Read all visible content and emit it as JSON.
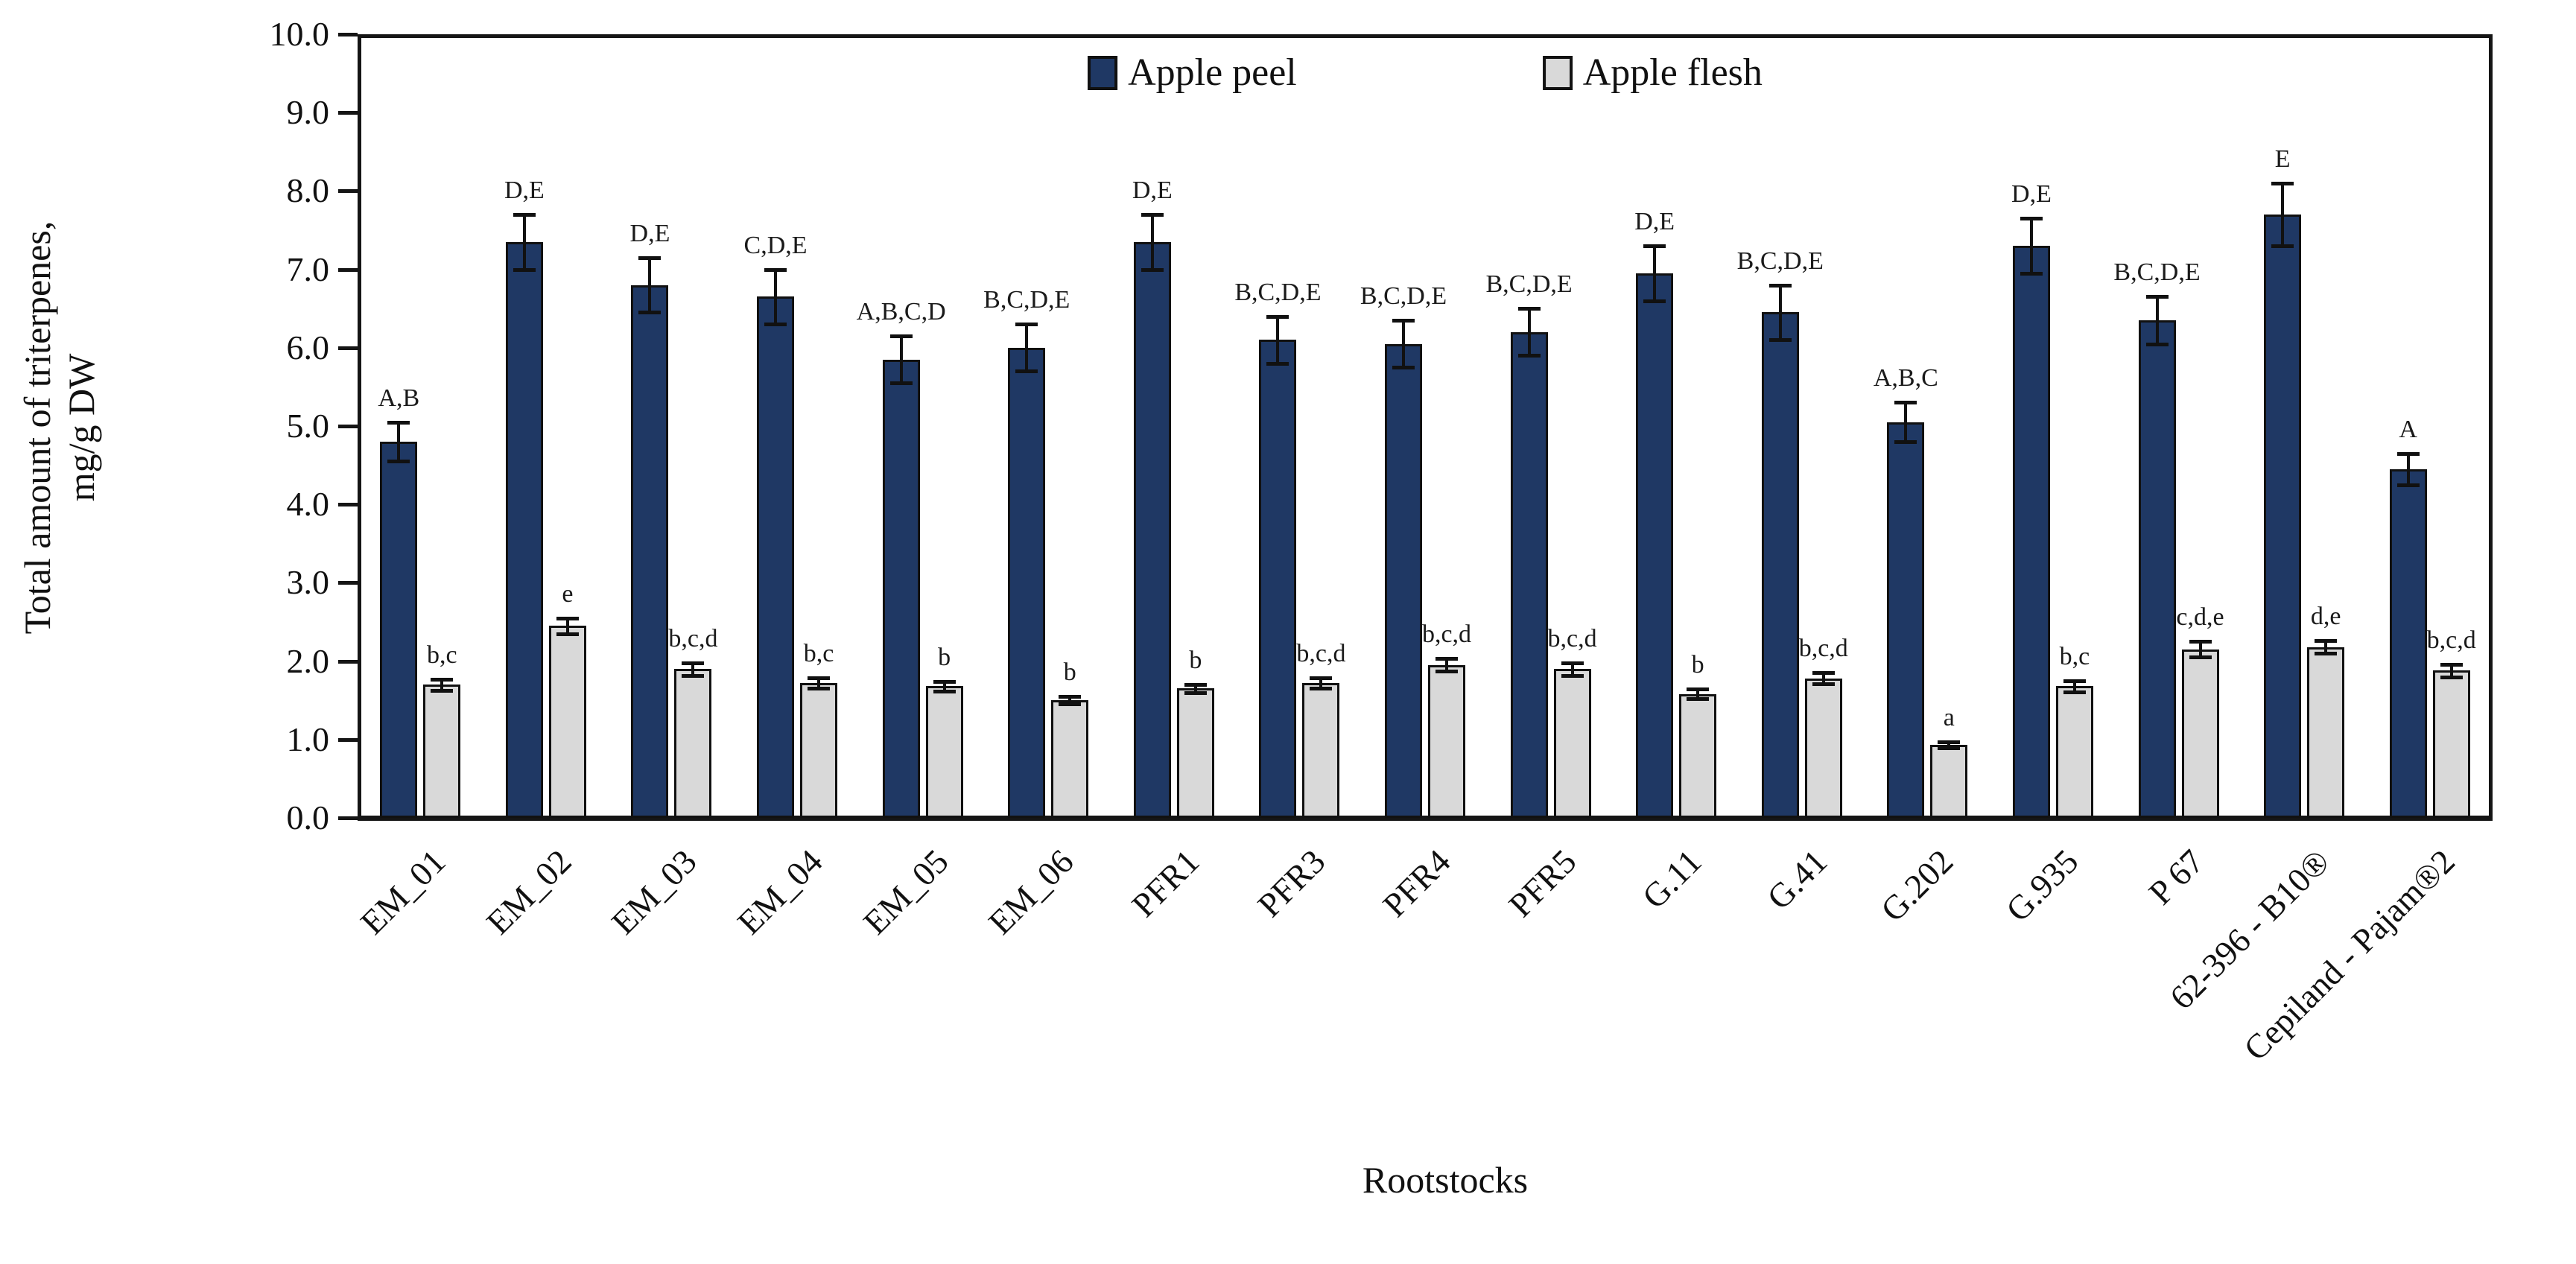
{
  "chart_data": {
    "type": "bar",
    "title": "",
    "xlabel": "Rootstocks",
    "ylabel": "Total amount of triterpenes, mg/g DW",
    "ylabel_line1": "Total amount of triterpenes,",
    "ylabel_line2": "mg/g DW",
    "ylim": [
      0.0,
      10.0
    ],
    "ytick_step": 1.0,
    "yticks": [
      "0.0",
      "1.0",
      "2.0",
      "3.0",
      "4.0",
      "5.0",
      "6.0",
      "7.0",
      "8.0",
      "9.0",
      "10.0"
    ],
    "grid": false,
    "legend_position": "top-center",
    "axis_color": "#151515",
    "bar_outline_color": "#111111",
    "error_bar_color": "#111111",
    "categories": [
      "EM_01",
      "EM_02",
      "EM_03",
      "EM_04",
      "EM_05",
      "EM_06",
      "PFR1",
      "PFR3",
      "PFR4",
      "PFR5",
      "G.11",
      "G.41",
      "G.202",
      "G.935",
      "P 67",
      "62-396 - B10®",
      "Cepiland - Pajam®2"
    ],
    "series": [
      {
        "name": "Apple peel",
        "color": "#1f3864",
        "values": [
          4.8,
          7.35,
          6.8,
          6.65,
          5.85,
          6.0,
          7.35,
          6.1,
          6.05,
          6.2,
          6.95,
          6.45,
          5.05,
          7.3,
          6.35,
          7.7,
          4.45
        ],
        "errors": [
          0.25,
          0.35,
          0.35,
          0.35,
          0.3,
          0.3,
          0.35,
          0.3,
          0.3,
          0.3,
          0.35,
          0.35,
          0.25,
          0.35,
          0.3,
          0.4,
          0.2
        ],
        "sig_labels": [
          "A,B",
          "D,E",
          "D,E",
          "C,D,E",
          "A,B,C,D",
          "B,C,D,E",
          "D,E",
          "B,C,D,E",
          "B,C,D,E",
          "B,C,D,E",
          "D,E",
          "B,C,D,E",
          "A,B,C",
          "D,E",
          "B,C,D,E",
          "E",
          "A"
        ]
      },
      {
        "name": "Apple flesh",
        "color": "#d9d9d9",
        "values": [
          1.7,
          2.45,
          1.9,
          1.72,
          1.68,
          1.5,
          1.65,
          1.72,
          1.95,
          1.9,
          1.58,
          1.78,
          0.93,
          1.68,
          2.15,
          2.18,
          1.88
        ],
        "errors": [
          0.07,
          0.1,
          0.08,
          0.07,
          0.06,
          0.05,
          0.05,
          0.07,
          0.08,
          0.08,
          0.06,
          0.07,
          0.04,
          0.07,
          0.1,
          0.08,
          0.08
        ],
        "sig_labels": [
          "b,c",
          "e",
          "b,c,d",
          "b,c",
          "b",
          "b",
          "b",
          "b,c,d",
          "b,c,d",
          "b,c,d",
          "b",
          "b,c,d",
          "a",
          "b,c",
          "c,d,e",
          "d,e",
          "b,c,d"
        ]
      }
    ]
  }
}
